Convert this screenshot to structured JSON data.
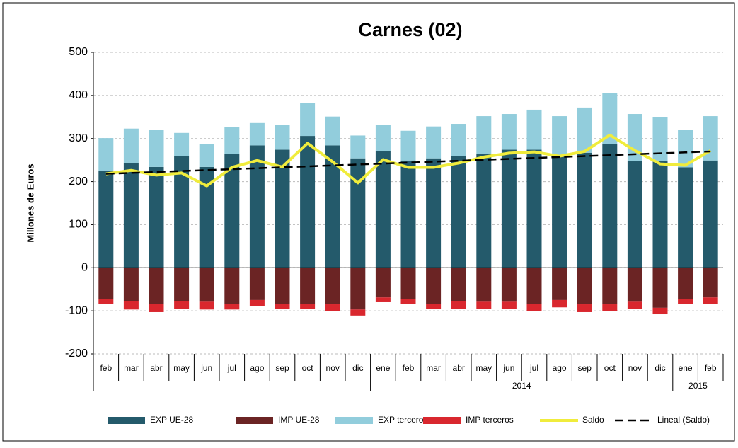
{
  "chart_data": {
    "type": "bar",
    "title": "Carnes (02)",
    "y_label": "Millones de Euros",
    "categories": [
      "feb",
      "mar",
      "abr",
      "may",
      "jun",
      "jul",
      "ago",
      "sep",
      "oct",
      "nov",
      "dic",
      "ene",
      "feb",
      "mar",
      "abr",
      "may",
      "jun",
      "jul",
      "ago",
      "sep",
      "oct",
      "nov",
      "dic",
      "ene",
      "feb"
    ],
    "years": [
      null,
      null,
      null,
      null,
      null,
      null,
      null,
      null,
      null,
      null,
      null,
      "2014",
      "2014",
      "2014",
      "2014",
      "2014",
      "2014",
      "2014",
      "2014",
      "2014",
      "2014",
      "2014",
      "2014",
      "2015",
      "2015"
    ],
    "ylim": [
      -200,
      500
    ],
    "yticks": [
      -200,
      -100,
      0,
      100,
      200,
      300,
      400,
      500
    ],
    "grid": true,
    "legend": "bottom",
    "series": [
      {
        "name": "EXP UE-28",
        "type": "bar",
        "color": "#245a6b",
        "values": [
          225,
          243,
          234,
          259,
          234,
          264,
          284,
          274,
          306,
          284,
          254,
          270,
          249,
          254,
          259,
          264,
          274,
          274,
          262,
          267,
          287,
          248,
          248,
          233,
          249
        ]
      },
      {
        "name": "IMP UE-28",
        "type": "bar",
        "color": "#6b2424",
        "values": [
          -72,
          -77,
          -84,
          -77,
          -79,
          -84,
          -75,
          -84,
          -84,
          -85,
          -97,
          -69,
          -72,
          -84,
          -77,
          -79,
          -79,
          -84,
          -75,
          -85,
          -85,
          -79,
          -93,
          -72,
          -69
        ]
      },
      {
        "name": "EXP terceros",
        "type": "bar",
        "color": "#92cddc",
        "values": [
          76,
          80,
          86,
          54,
          53,
          62,
          52,
          57,
          77,
          67,
          53,
          61,
          69,
          74,
          75,
          88,
          83,
          93,
          90,
          105,
          119,
          109,
          101,
          87,
          103
        ]
      },
      {
        "name": "IMP terceros",
        "type": "bar",
        "color": "#d9272e",
        "values": [
          -12,
          -20,
          -19,
          -18,
          -18,
          -13,
          -14,
          -11,
          -11,
          -15,
          -14,
          -11,
          -12,
          -11,
          -18,
          -16,
          -16,
          -16,
          -17,
          -18,
          -15,
          -16,
          -15,
          -12,
          -15
        ]
      },
      {
        "name": "Saldo",
        "type": "line",
        "color": "#f0ec3c",
        "linestyle": "solid",
        "values": [
          218,
          226,
          215,
          220,
          190,
          233,
          249,
          234,
          289,
          246,
          197,
          251,
          233,
          233,
          243,
          257,
          266,
          269,
          259,
          270,
          308,
          272,
          241,
          238,
          272
        ]
      },
      {
        "name": "Lineal (Saldo)",
        "type": "line",
        "color": "#000000",
        "linestyle": "dashed",
        "values": [
          218,
          220.2,
          222.3,
          224.5,
          226.7,
          228.8,
          231,
          233.2,
          235.3,
          237.5,
          239.7,
          241.8,
          244,
          246.2,
          248.3,
          250.5,
          252.7,
          254.8,
          257,
          259.2,
          261.3,
          263.5,
          265.7,
          267.8,
          270
        ]
      }
    ]
  }
}
